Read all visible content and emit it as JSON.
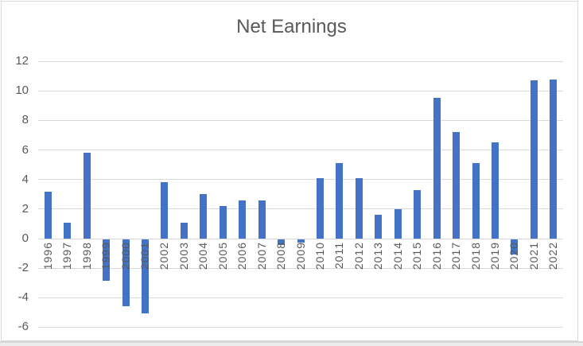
{
  "colors": {
    "bar": "#4472C4",
    "gridline": "#D9D9D9",
    "text": "#595959",
    "border": "#D9D9D9",
    "background": "#FFFFFF"
  },
  "chart_data": {
    "type": "bar",
    "title": "Net Earnings",
    "categories": [
      "1996",
      "1997",
      "1998",
      "1999",
      "2000",
      "2001",
      "2002",
      "2003",
      "2004",
      "2005",
      "2006",
      "2007",
      "2008",
      "2009",
      "2010",
      "2011",
      "2012",
      "2013",
      "2014",
      "2015",
      "2016",
      "2017",
      "2018",
      "2019",
      "2020",
      "2021",
      "2022"
    ],
    "values": [
      3.2,
      1.1,
      5.8,
      -2.8,
      -4.5,
      -5.0,
      3.8,
      1.1,
      3.0,
      2.2,
      2.6,
      2.6,
      -0.4,
      -0.2,
      4.1,
      5.1,
      4.1,
      1.6,
      2.0,
      3.3,
      9.5,
      7.2,
      5.1,
      6.5,
      -1.0,
      10.7,
      10.75
    ],
    "xlabel": "",
    "ylabel": "",
    "ylim": [
      -6,
      12
    ],
    "ytick_step": 2,
    "yticks": [
      12,
      10,
      8,
      6,
      4,
      2,
      0,
      -2,
      -4,
      -6
    ],
    "grid": true,
    "legend": false,
    "series_name": "Net Earnings"
  }
}
